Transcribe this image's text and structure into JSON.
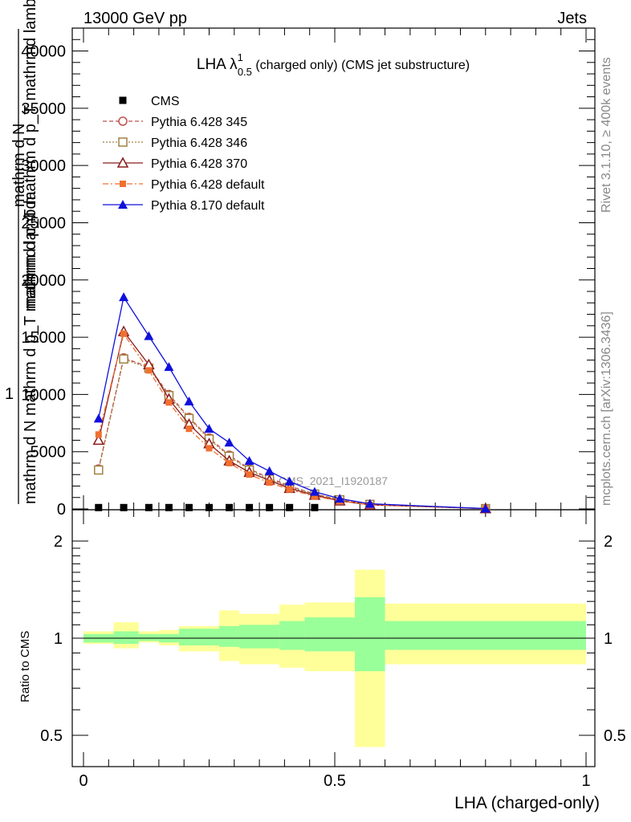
{
  "header": {
    "energy_label": "13000 GeV pp",
    "category_label": "Jets"
  },
  "side_labels": {
    "rivet_version": "Rivet 3.1.10, ≥ 400k events",
    "source": "mcplots.cern.ch [arXiv:1306.3436]"
  },
  "watermark": "CMS_2021_I1920187",
  "chart_data": [
    {
      "type": "line",
      "title": "LHA λ¹₀.₅ (charged only) (CMS jet substructure)",
      "title_parts": {
        "main": "LHA λ",
        "sup": "1",
        "sub": "0.5",
        "rest": " (charged only) (CMS jet substructure)"
      },
      "xlabel": "LHA (charged-only)",
      "ylabel": "1 / mathrm d N mathrm d N / mathrm d p_T mathrm d p_T mathrmd lambda",
      "ylabel_lines": [
        "mathrm d N",
        "mathrm d p_T mathrm d p_T mathrmd lambda",
        "mathrm d N mathrm d p_T mathrmd lambda"
      ],
      "xlim": [
        0,
        1
      ],
      "ylim": [
        0,
        42000
      ],
      "x_ticks": [
        "0",
        "0.5",
        "1"
      ],
      "y_ticks": [
        "0",
        "5000",
        "10000",
        "15000",
        "20000",
        "25000",
        "30000",
        "35000",
        "40000"
      ],
      "legend_position": "top-left",
      "x": [
        0.03,
        0.08,
        0.13,
        0.17,
        0.21,
        0.25,
        0.29,
        0.33,
        0.37,
        0.41,
        0.46,
        0.51,
        0.57,
        0.8
      ],
      "series": [
        {
          "name": "CMS",
          "color": "#000000",
          "marker": "square-filled",
          "line": "none",
          "values": [
            120,
            120,
            120,
            120,
            120,
            120,
            120,
            120,
            120,
            120,
            120,
            0,
            0,
            0
          ]
        },
        {
          "name": "Pythia 6.428 345",
          "color": "#c0504d",
          "marker": "circle-open",
          "line": "dashed",
          "values": [
            3500,
            13200,
            12400,
            10000,
            8000,
            6200,
            4700,
            3500,
            2700,
            2000,
            1300,
            800,
            400,
            30
          ]
        },
        {
          "name": "Pythia 6.428 346",
          "color": "#a08040",
          "marker": "square-open",
          "line": "dotted",
          "values": [
            3400,
            13100,
            12300,
            9900,
            7900,
            6100,
            4600,
            3400,
            2600,
            1900,
            1300,
            800,
            400,
            30
          ]
        },
        {
          "name": "Pythia 6.428 370",
          "color": "#8b1a1a",
          "marker": "triangle-open",
          "line": "solid",
          "values": [
            6000,
            15500,
            12600,
            9600,
            7400,
            5700,
            4200,
            3200,
            2500,
            1800,
            1200,
            700,
            350,
            30
          ]
        },
        {
          "name": "Pythia 6.428 default",
          "color": "#f07030",
          "marker": "square-filled-small",
          "line": "dashdot",
          "values": [
            6500,
            15300,
            12100,
            9300,
            7000,
            5300,
            4000,
            3000,
            2300,
            1700,
            1100,
            700,
            350,
            30
          ]
        },
        {
          "name": "Pythia 8.170 default",
          "color": "#1010dd",
          "marker": "triangle-filled",
          "line": "solid",
          "values": [
            7900,
            18500,
            15100,
            12400,
            9400,
            7000,
            5800,
            4200,
            3300,
            2400,
            1500,
            900,
            450,
            30
          ]
        }
      ]
    },
    {
      "type": "area",
      "ylabel": "Ratio to CMS",
      "xlabel": "LHA (charged-only)",
      "xlim": [
        0,
        1
      ],
      "ylim": [
        0.4,
        2.3
      ],
      "y_ticks": [
        "0.5",
        "1",
        "2"
      ],
      "x_ticks": [
        "0",
        "0.5",
        "1"
      ],
      "reference_line": 1,
      "bins": [
        0,
        0.06,
        0.11,
        0.15,
        0.19,
        0.27,
        0.31,
        0.39,
        0.44,
        0.54,
        0.6,
        1.0
      ],
      "inner_band": {
        "color": "#99ff99",
        "low": [
          0.97,
          0.96,
          0.98,
          0.97,
          0.95,
          0.94,
          0.93,
          0.92,
          0.91,
          0.79,
          0.92
        ],
        "high": [
          1.03,
          1.05,
          1.03,
          1.03,
          1.07,
          1.09,
          1.1,
          1.13,
          1.16,
          1.34,
          1.13
        ]
      },
      "outer_band": {
        "color": "#ffff99",
        "low": [
          0.96,
          0.93,
          0.97,
          0.95,
          0.91,
          0.85,
          0.83,
          0.81,
          0.79,
          0.46,
          0.83
        ],
        "high": [
          1.05,
          1.12,
          1.05,
          1.06,
          1.09,
          1.22,
          1.19,
          1.27,
          1.29,
          1.63,
          1.28
        ]
      }
    }
  ]
}
